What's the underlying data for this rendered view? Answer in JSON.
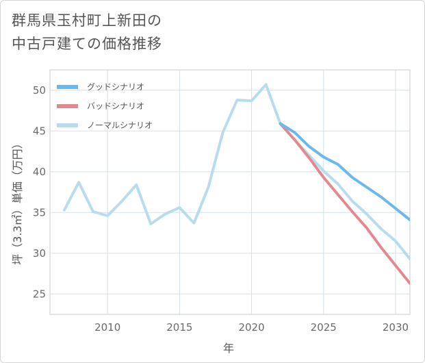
{
  "title": {
    "line1": "群馬県玉村町上新田の",
    "line2": "中古戸建ての価格推移"
  },
  "chart_data": {
    "type": "line",
    "xlabel": "年",
    "ylabel": "坪（3.3㎡）単価（万円）",
    "xlim": [
      2006,
      2031
    ],
    "ylim": [
      22.5,
      52.5
    ],
    "x_ticks": [
      2010,
      2015,
      2020,
      2025,
      2030
    ],
    "y_ticks": [
      25,
      30,
      35,
      40,
      45,
      50
    ],
    "grid": true,
    "legend_position": "top-left",
    "series": [
      {
        "name": "グッドシナリオ",
        "color": "#6cb8ea",
        "x": [
          2022,
          2023,
          2024,
          2025,
          2026,
          2027,
          2028,
          2029,
          2030,
          2031
        ],
        "values": [
          45.9,
          44.8,
          43.1,
          41.8,
          40.9,
          39.3,
          38.1,
          36.9,
          35.5,
          34.1
        ]
      },
      {
        "name": "バッドシナリオ",
        "color": "#e08a8f",
        "x": [
          2022,
          2023,
          2024,
          2025,
          2026,
          2027,
          2028,
          2029,
          2030,
          2031
        ],
        "values": [
          45.9,
          43.9,
          41.7,
          39.3,
          37.2,
          35.1,
          33.1,
          30.7,
          28.5,
          26.3
        ]
      },
      {
        "name": "ノーマルシナリオ",
        "color": "#b8dcec",
        "x": [
          2007,
          2008,
          2009,
          2010,
          2011,
          2012,
          2013,
          2014,
          2015,
          2016,
          2017,
          2018,
          2019,
          2020,
          2021,
          2022,
          2023,
          2024,
          2025,
          2026,
          2027,
          2028,
          2029,
          2030,
          2031
        ],
        "values": [
          35.3,
          38.7,
          35.1,
          34.6,
          36.4,
          38.4,
          33.6,
          34.8,
          35.6,
          33.7,
          38.1,
          44.8,
          48.8,
          48.7,
          50.7,
          45.9,
          43.9,
          42.0,
          40.1,
          38.5,
          36.4,
          34.8,
          33.0,
          31.5,
          29.3
        ]
      }
    ]
  }
}
